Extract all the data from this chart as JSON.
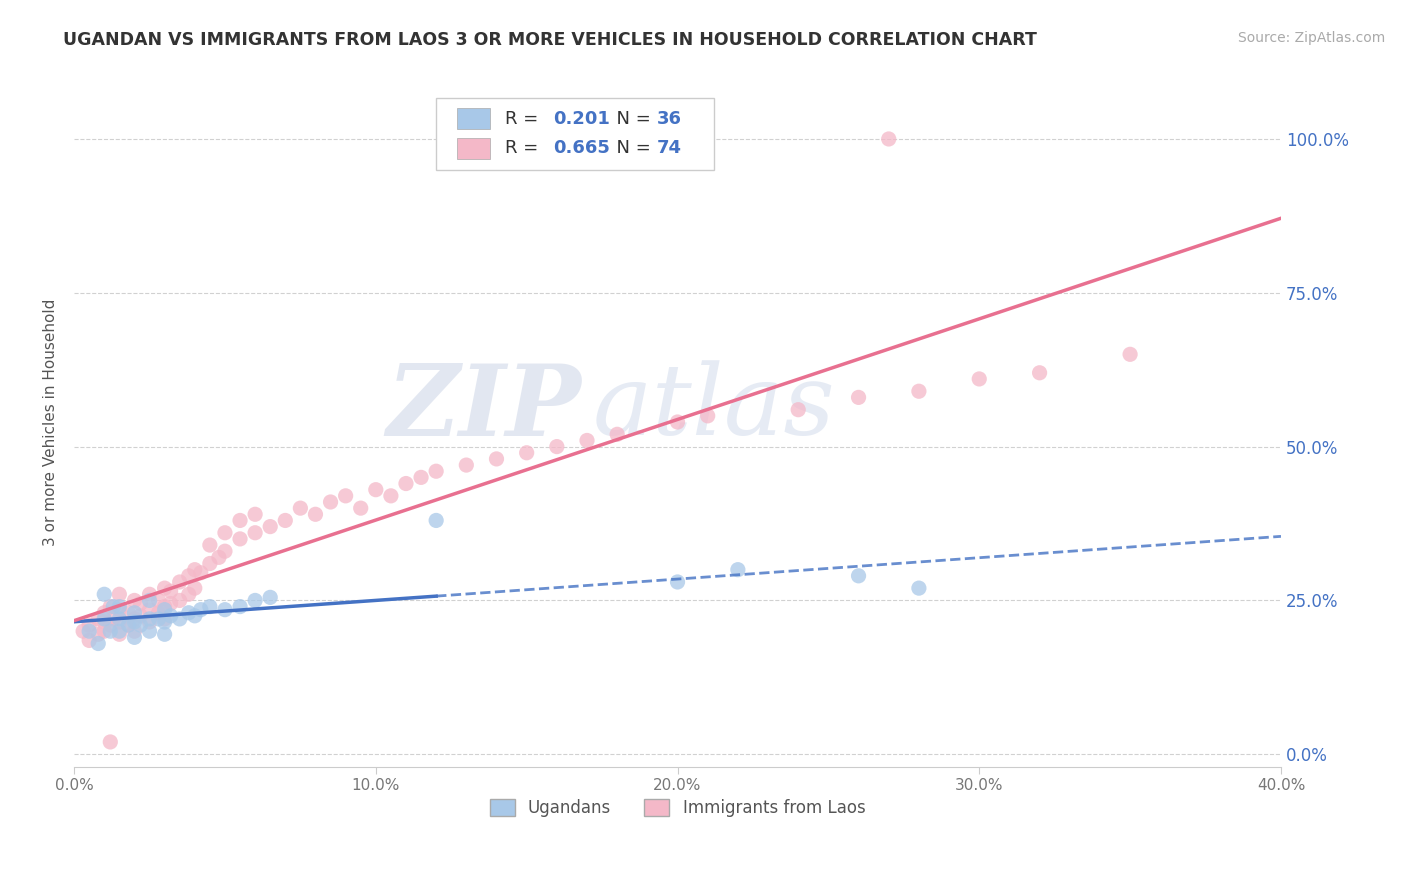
{
  "title": "UGANDAN VS IMMIGRANTS FROM LAOS 3 OR MORE VEHICLES IN HOUSEHOLD CORRELATION CHART",
  "source": "Source: ZipAtlas.com",
  "ylabel": "3 or more Vehicles in Household",
  "xlim": [
    0.0,
    0.4
  ],
  "ylim": [
    -0.02,
    1.1
  ],
  "yticks": [
    0.0,
    0.25,
    0.5,
    0.75,
    1.0
  ],
  "ytick_labels": [
    "0.0%",
    "25.0%",
    "50.0%",
    "75.0%",
    "100.0%"
  ],
  "xticks": [
    0.0,
    0.1,
    0.2,
    0.3,
    0.4
  ],
  "xtick_labels": [
    "0.0%",
    "10.0%",
    "20.0%",
    "30.0%",
    "40.0%"
  ],
  "blue_color": "#a8c8e8",
  "pink_color": "#f4b8c8",
  "blue_line_color": "#4472c4",
  "pink_line_color": "#e87090",
  "r_blue": 0.201,
  "n_blue": 36,
  "r_pink": 0.665,
  "n_pink": 74,
  "legend_label_blue": "Ugandans",
  "legend_label_pink": "Immigrants from Laos",
  "watermark_zip": "ZIP",
  "watermark_atlas": "atlas",
  "background_color": "#ffffff",
  "blue_scatter_x": [
    0.005,
    0.008,
    0.01,
    0.01,
    0.012,
    0.013,
    0.015,
    0.015,
    0.015,
    0.018,
    0.02,
    0.02,
    0.02,
    0.022,
    0.025,
    0.025,
    0.025,
    0.028,
    0.03,
    0.03,
    0.03,
    0.032,
    0.035,
    0.038,
    0.04,
    0.042,
    0.045,
    0.05,
    0.055,
    0.06,
    0.065,
    0.12,
    0.2,
    0.22,
    0.26,
    0.28
  ],
  "blue_scatter_y": [
    0.2,
    0.18,
    0.22,
    0.26,
    0.2,
    0.24,
    0.2,
    0.22,
    0.24,
    0.21,
    0.19,
    0.215,
    0.23,
    0.21,
    0.2,
    0.22,
    0.25,
    0.22,
    0.195,
    0.215,
    0.235,
    0.225,
    0.22,
    0.23,
    0.225,
    0.235,
    0.24,
    0.235,
    0.24,
    0.25,
    0.255,
    0.38,
    0.28,
    0.3,
    0.29,
    0.27
  ],
  "pink_scatter_x": [
    0.003,
    0.005,
    0.005,
    0.008,
    0.008,
    0.01,
    0.01,
    0.01,
    0.012,
    0.012,
    0.013,
    0.015,
    0.015,
    0.015,
    0.015,
    0.018,
    0.018,
    0.02,
    0.02,
    0.02,
    0.022,
    0.022,
    0.025,
    0.025,
    0.025,
    0.028,
    0.028,
    0.03,
    0.03,
    0.03,
    0.032,
    0.032,
    0.035,
    0.035,
    0.038,
    0.038,
    0.04,
    0.04,
    0.042,
    0.045,
    0.045,
    0.048,
    0.05,
    0.05,
    0.055,
    0.055,
    0.06,
    0.06,
    0.065,
    0.07,
    0.075,
    0.08,
    0.085,
    0.09,
    0.095,
    0.1,
    0.105,
    0.11,
    0.115,
    0.12,
    0.13,
    0.14,
    0.15,
    0.16,
    0.17,
    0.18,
    0.2,
    0.21,
    0.24,
    0.26,
    0.28,
    0.3,
    0.32,
    0.35
  ],
  "pink_scatter_y": [
    0.2,
    0.21,
    0.185,
    0.22,
    0.195,
    0.215,
    0.23,
    0.2,
    0.21,
    0.24,
    0.22,
    0.195,
    0.215,
    0.235,
    0.26,
    0.21,
    0.23,
    0.2,
    0.22,
    0.25,
    0.225,
    0.245,
    0.215,
    0.235,
    0.26,
    0.23,
    0.25,
    0.22,
    0.24,
    0.27,
    0.245,
    0.265,
    0.25,
    0.28,
    0.26,
    0.29,
    0.27,
    0.3,
    0.295,
    0.31,
    0.34,
    0.32,
    0.33,
    0.36,
    0.35,
    0.38,
    0.36,
    0.39,
    0.37,
    0.38,
    0.4,
    0.39,
    0.41,
    0.42,
    0.4,
    0.43,
    0.42,
    0.44,
    0.45,
    0.46,
    0.47,
    0.48,
    0.49,
    0.5,
    0.51,
    0.52,
    0.54,
    0.55,
    0.56,
    0.58,
    0.59,
    0.61,
    0.62,
    0.65
  ],
  "pink_outlier_x": [
    0.27
  ],
  "pink_outlier_y": [
    1.0
  ],
  "pink_low_x": [
    0.012
  ],
  "pink_low_y": [
    0.02
  ]
}
